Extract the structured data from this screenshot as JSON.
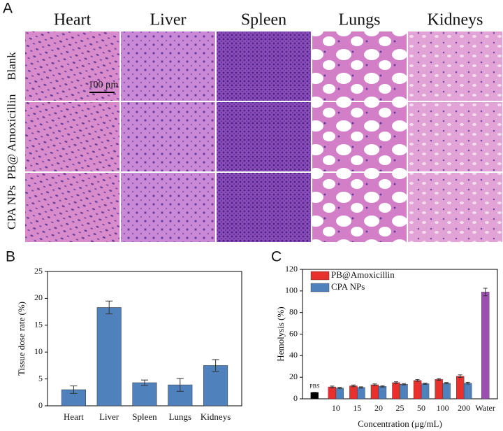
{
  "panel_a": {
    "label": "A",
    "columns": [
      "Heart",
      "Liver",
      "Spleen",
      "Lungs",
      "Kidneys"
    ],
    "rows": [
      "Blank",
      "PB@ Amoxicillin",
      "CPA NPs"
    ],
    "scale_bar": "100 μm"
  },
  "chart_data": [
    {
      "type": "bar",
      "panel_label": "B",
      "ylabel": "Tissue dose rate (%)",
      "categories": [
        "Heart",
        "Liver",
        "Spleen",
        "Lungs",
        "Kidneys"
      ],
      "values": [
        3.0,
        18.3,
        4.3,
        3.9,
        7.5
      ],
      "errors": [
        0.7,
        1.2,
        0.5,
        1.2,
        1.1
      ],
      "color": "#4f81bd",
      "ylim": [
        0,
        25
      ],
      "yticks": [
        0,
        5,
        10,
        15,
        20,
        25
      ]
    },
    {
      "type": "grouped_bar",
      "panel_label": "C",
      "xlabel": "Concentration (μg/mL)",
      "ylabel": "Hemolysis (%)",
      "categories": [
        "PBS",
        "10",
        "15",
        "20",
        "25",
        "50",
        "100",
        "200",
        "Water"
      ],
      "series": [
        {
          "name": "PB@Amoxicillin",
          "color": "#e8302c",
          "values": [
            null,
            11,
            12,
            13,
            15,
            17,
            18,
            21,
            null
          ],
          "errors": [
            null,
            0.8,
            0.8,
            0.8,
            0.8,
            0.8,
            0.8,
            1.2,
            null
          ]
        },
        {
          "name": "CPA NPs",
          "color": "#4f81bd",
          "values": [
            null,
            10,
            10.5,
            11.5,
            13.5,
            14,
            14.5,
            14.5,
            null
          ],
          "errors": [
            null,
            0.6,
            0.6,
            0.6,
            0.6,
            0.6,
            0.6,
            0.8,
            null
          ]
        },
        {
          "colors": [
            "#000000",
            null,
            null,
            null,
            null,
            null,
            null,
            null,
            "#9b4fb0"
          ],
          "values": [
            6,
            null,
            null,
            null,
            null,
            null,
            null,
            null,
            99
          ],
          "errors": [
            0,
            null,
            null,
            null,
            null,
            null,
            null,
            null,
            3.5
          ]
        }
      ],
      "ylim": [
        0,
        120
      ],
      "yticks": [
        0,
        20,
        40,
        60,
        80,
        100,
        120
      ],
      "legend": "upper left"
    }
  ]
}
